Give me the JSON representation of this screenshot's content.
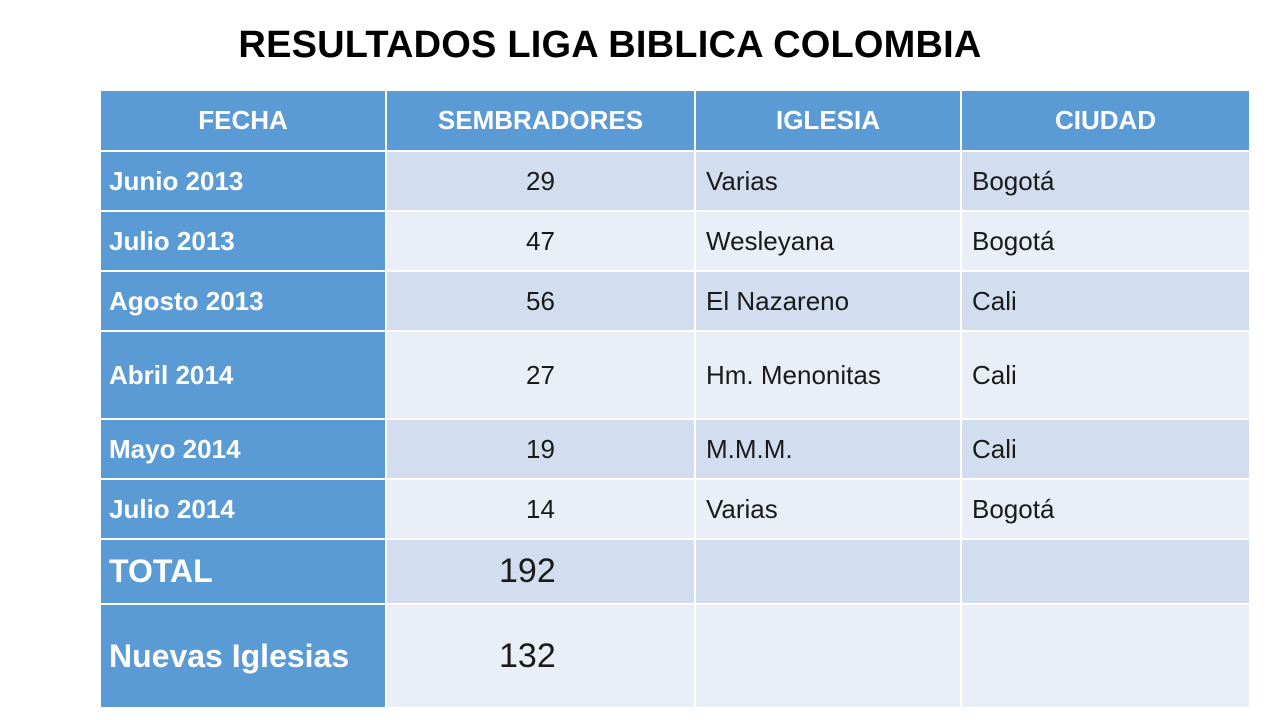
{
  "title": "RESULTADOS LIGA BIBLICA COLOMBIA",
  "table": {
    "headers": [
      "FECHA",
      "SEMBRADORES",
      "IGLESIA",
      "CIUDAD"
    ],
    "rows": [
      {
        "fecha": "Junio 2013",
        "sembradores": "29",
        "iglesia": "Varias",
        "ciudad": "Bogotá"
      },
      {
        "fecha": "Julio 2013",
        "sembradores": "47",
        "iglesia": "Wesleyana",
        "ciudad": "Bogotá"
      },
      {
        "fecha": "Agosto 2013",
        "sembradores": "56",
        "iglesia": "El Nazareno",
        "ciudad": "Cali"
      },
      {
        "fecha": "Abril 2014",
        "sembradores": "27",
        "iglesia": "Hm. Menonitas",
        "ciudad": "Cali"
      },
      {
        "fecha": "Mayo 2014",
        "sembradores": "19",
        "iglesia": "M.M.M.",
        "ciudad": "Cali"
      },
      {
        "fecha": "Julio 2014",
        "sembradores": "14",
        "iglesia": "Varias",
        "ciudad": "Bogotá"
      }
    ],
    "total": {
      "label": "TOTAL",
      "value": "192",
      "iglesia": "",
      "ciudad": ""
    },
    "nuevas": {
      "label": "Nuevas Iglesias",
      "value": "132",
      "iglesia": "",
      "ciudad": ""
    }
  },
  "colors": {
    "header_bg": "#5b9bd5",
    "row_odd_bg": "#d2deef",
    "row_even_bg": "#eaeff7",
    "header_text": "#ffffff"
  }
}
